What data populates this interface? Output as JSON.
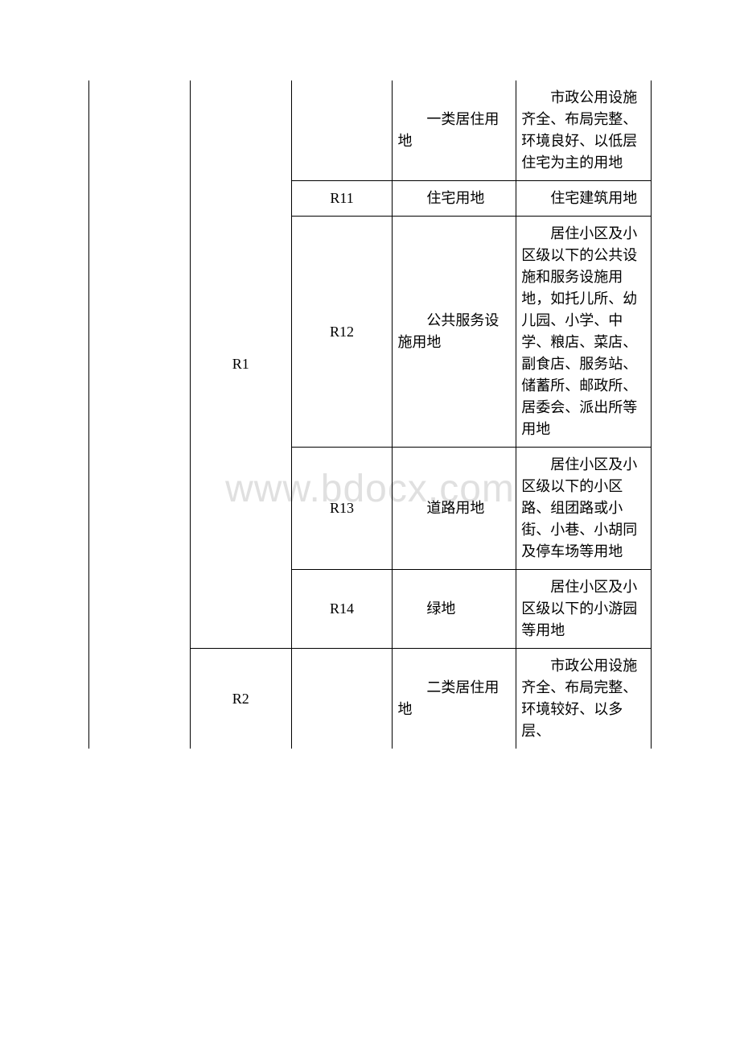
{
  "watermark": "www.bdocx.com",
  "table": {
    "rows": [
      {
        "col2": "R1",
        "col2_rowspan": 5,
        "col3": "",
        "col4": "　　一类居住用地",
        "col5": "　　市政公用设施齐全、布局完整、环境良好、以低层住宅为主的用地"
      },
      {
        "col3": "R11",
        "col4": "　　住宅用地",
        "col5": "　　住宅建筑用地"
      },
      {
        "col3": "R12",
        "col4": "　　公共服务设施用地",
        "col5": "　　居住小区及小区级以下的公共设施和服务设施用地，如托儿所、幼儿园、小学、中学、粮店、菜店、副食店、服务站、储蓄所、邮政所、居委会、派出所等用地"
      },
      {
        "col3": "R13",
        "col4": "　　道路用地",
        "col5": "　　居住小区及小区级以下的小区路、组团路或小街、小巷、小胡同及停车场等用地"
      },
      {
        "col3": "R14",
        "col4": "　　绿地",
        "col5": "　　居住小区及小区级以下的小游园等用地"
      },
      {
        "col2": "R2",
        "col3": "",
        "col4": "　　二类居住用地",
        "col5": "　　市政公用设施齐全、布局完整、环境较好、以多层、"
      }
    ]
  }
}
